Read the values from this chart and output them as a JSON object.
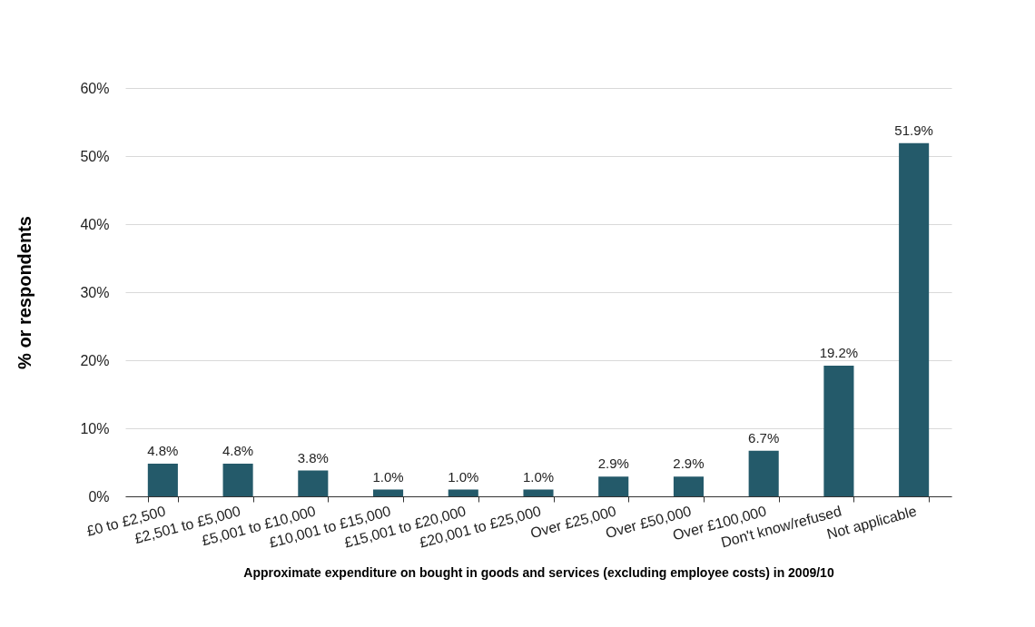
{
  "chart_data": {
    "type": "bar",
    "xlabel": "Approximate expenditure on bought in goods and services (excluding employee costs) in 2009/10",
    "ylabel": "% or respondents",
    "categories": [
      "£0 to £2,500",
      "£2,501 to £5,000",
      "£5,001 to £10,000",
      "£10,001 to £15,000",
      "£15,001 to £20,000",
      "£20,001 to £25,000",
      "Over £25,000",
      "Over £50,000",
      "Over £100,000",
      "Don't know/refused",
      "Not applicable"
    ],
    "values": [
      4.8,
      4.8,
      3.8,
      1.0,
      1.0,
      1.0,
      2.9,
      2.9,
      6.7,
      19.2,
      51.9
    ],
    "value_labels": [
      "4.8%",
      "4.8%",
      "3.8%",
      "1.0%",
      "1.0%",
      "1.0%",
      "2.9%",
      "2.9%",
      "6.7%",
      "19.2%",
      "51.9%"
    ],
    "color": "#245a6a",
    "ylim": [
      0,
      60
    ],
    "yticks": [
      {
        "value": 0,
        "label": "0%"
      },
      {
        "value": 10,
        "label": "10%"
      },
      {
        "value": 20,
        "label": "20%"
      },
      {
        "value": 30,
        "label": "30%"
      },
      {
        "value": 40,
        "label": "40%"
      },
      {
        "value": 50,
        "label": "50%"
      },
      {
        "value": 60,
        "label": "60%"
      }
    ],
    "grid": true
  }
}
